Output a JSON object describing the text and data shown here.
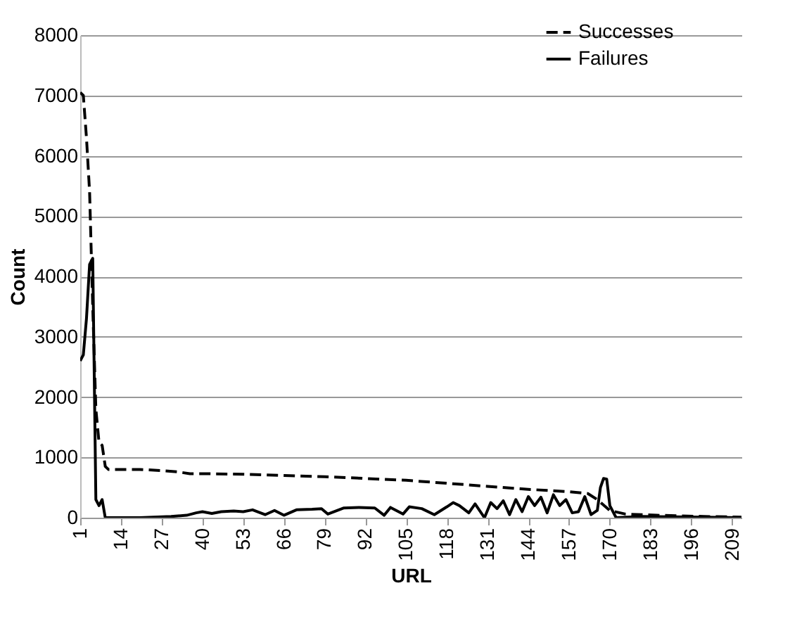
{
  "chart_data": {
    "type": "line",
    "xlabel": "URL",
    "ylabel": "Count",
    "xlim": [
      1,
      212
    ],
    "xticks": [
      1,
      14,
      27,
      40,
      53,
      66,
      79,
      92,
      105,
      118,
      131,
      144,
      157,
      170,
      183,
      196,
      209
    ],
    "ylim": [
      0,
      8000
    ],
    "yticks": [
      0,
      1000,
      2000,
      3000,
      4000,
      5000,
      6000,
      7000,
      8000
    ],
    "grid": "y",
    "legend": "top right",
    "series": [
      {
        "name": "Successes",
        "color": "#000000",
        "line_style": "dashed",
        "x": [
          1,
          2,
          3,
          4,
          5,
          6,
          7,
          8,
          9,
          10,
          14,
          20,
          27,
          32,
          36,
          40,
          53,
          66,
          79,
          92,
          105,
          118,
          131,
          144,
          157,
          163,
          166,
          170,
          175,
          185,
          200,
          212
        ],
        "values": [
          7050,
          7000,
          6300,
          5400,
          3500,
          1800,
          1250,
          1200,
          850,
          800,
          800,
          800,
          780,
          760,
          730,
          730,
          720,
          700,
          680,
          650,
          620,
          570,
          520,
          470,
          430,
          400,
          300,
          120,
          60,
          40,
          20,
          10
        ]
      },
      {
        "name": "Failures",
        "color": "#000000",
        "line_style": "solid",
        "x": [
          1,
          2,
          3,
          4,
          5,
          6,
          7,
          8,
          9,
          10,
          20,
          30,
          35,
          38,
          40,
          43,
          46,
          50,
          53,
          56,
          60,
          63,
          66,
          70,
          75,
          78,
          80,
          85,
          90,
          95,
          98,
          100,
          104,
          106,
          110,
          114,
          118,
          120,
          122,
          125,
          127,
          130,
          132,
          134,
          136,
          138,
          140,
          142,
          144,
          146,
          148,
          150,
          152,
          154,
          156,
          158,
          160,
          162,
          164,
          166,
          167,
          168,
          169,
          170,
          172,
          180,
          200,
          212
        ],
        "values": [
          2600,
          2700,
          3300,
          4200,
          4300,
          300,
          200,
          300,
          0,
          0,
          0,
          20,
          40,
          80,
          100,
          70,
          100,
          110,
          100,
          130,
          50,
          120,
          40,
          130,
          140,
          150,
          60,
          160,
          170,
          160,
          40,
          170,
          60,
          180,
          150,
          50,
          180,
          250,
          200,
          80,
          230,
          0,
          250,
          150,
          280,
          50,
          300,
          100,
          350,
          200,
          340,
          80,
          380,
          200,
          300,
          80,
          100,
          350,
          50,
          120,
          500,
          650,
          640,
          200,
          0,
          20,
          10,
          0
        ]
      }
    ]
  }
}
